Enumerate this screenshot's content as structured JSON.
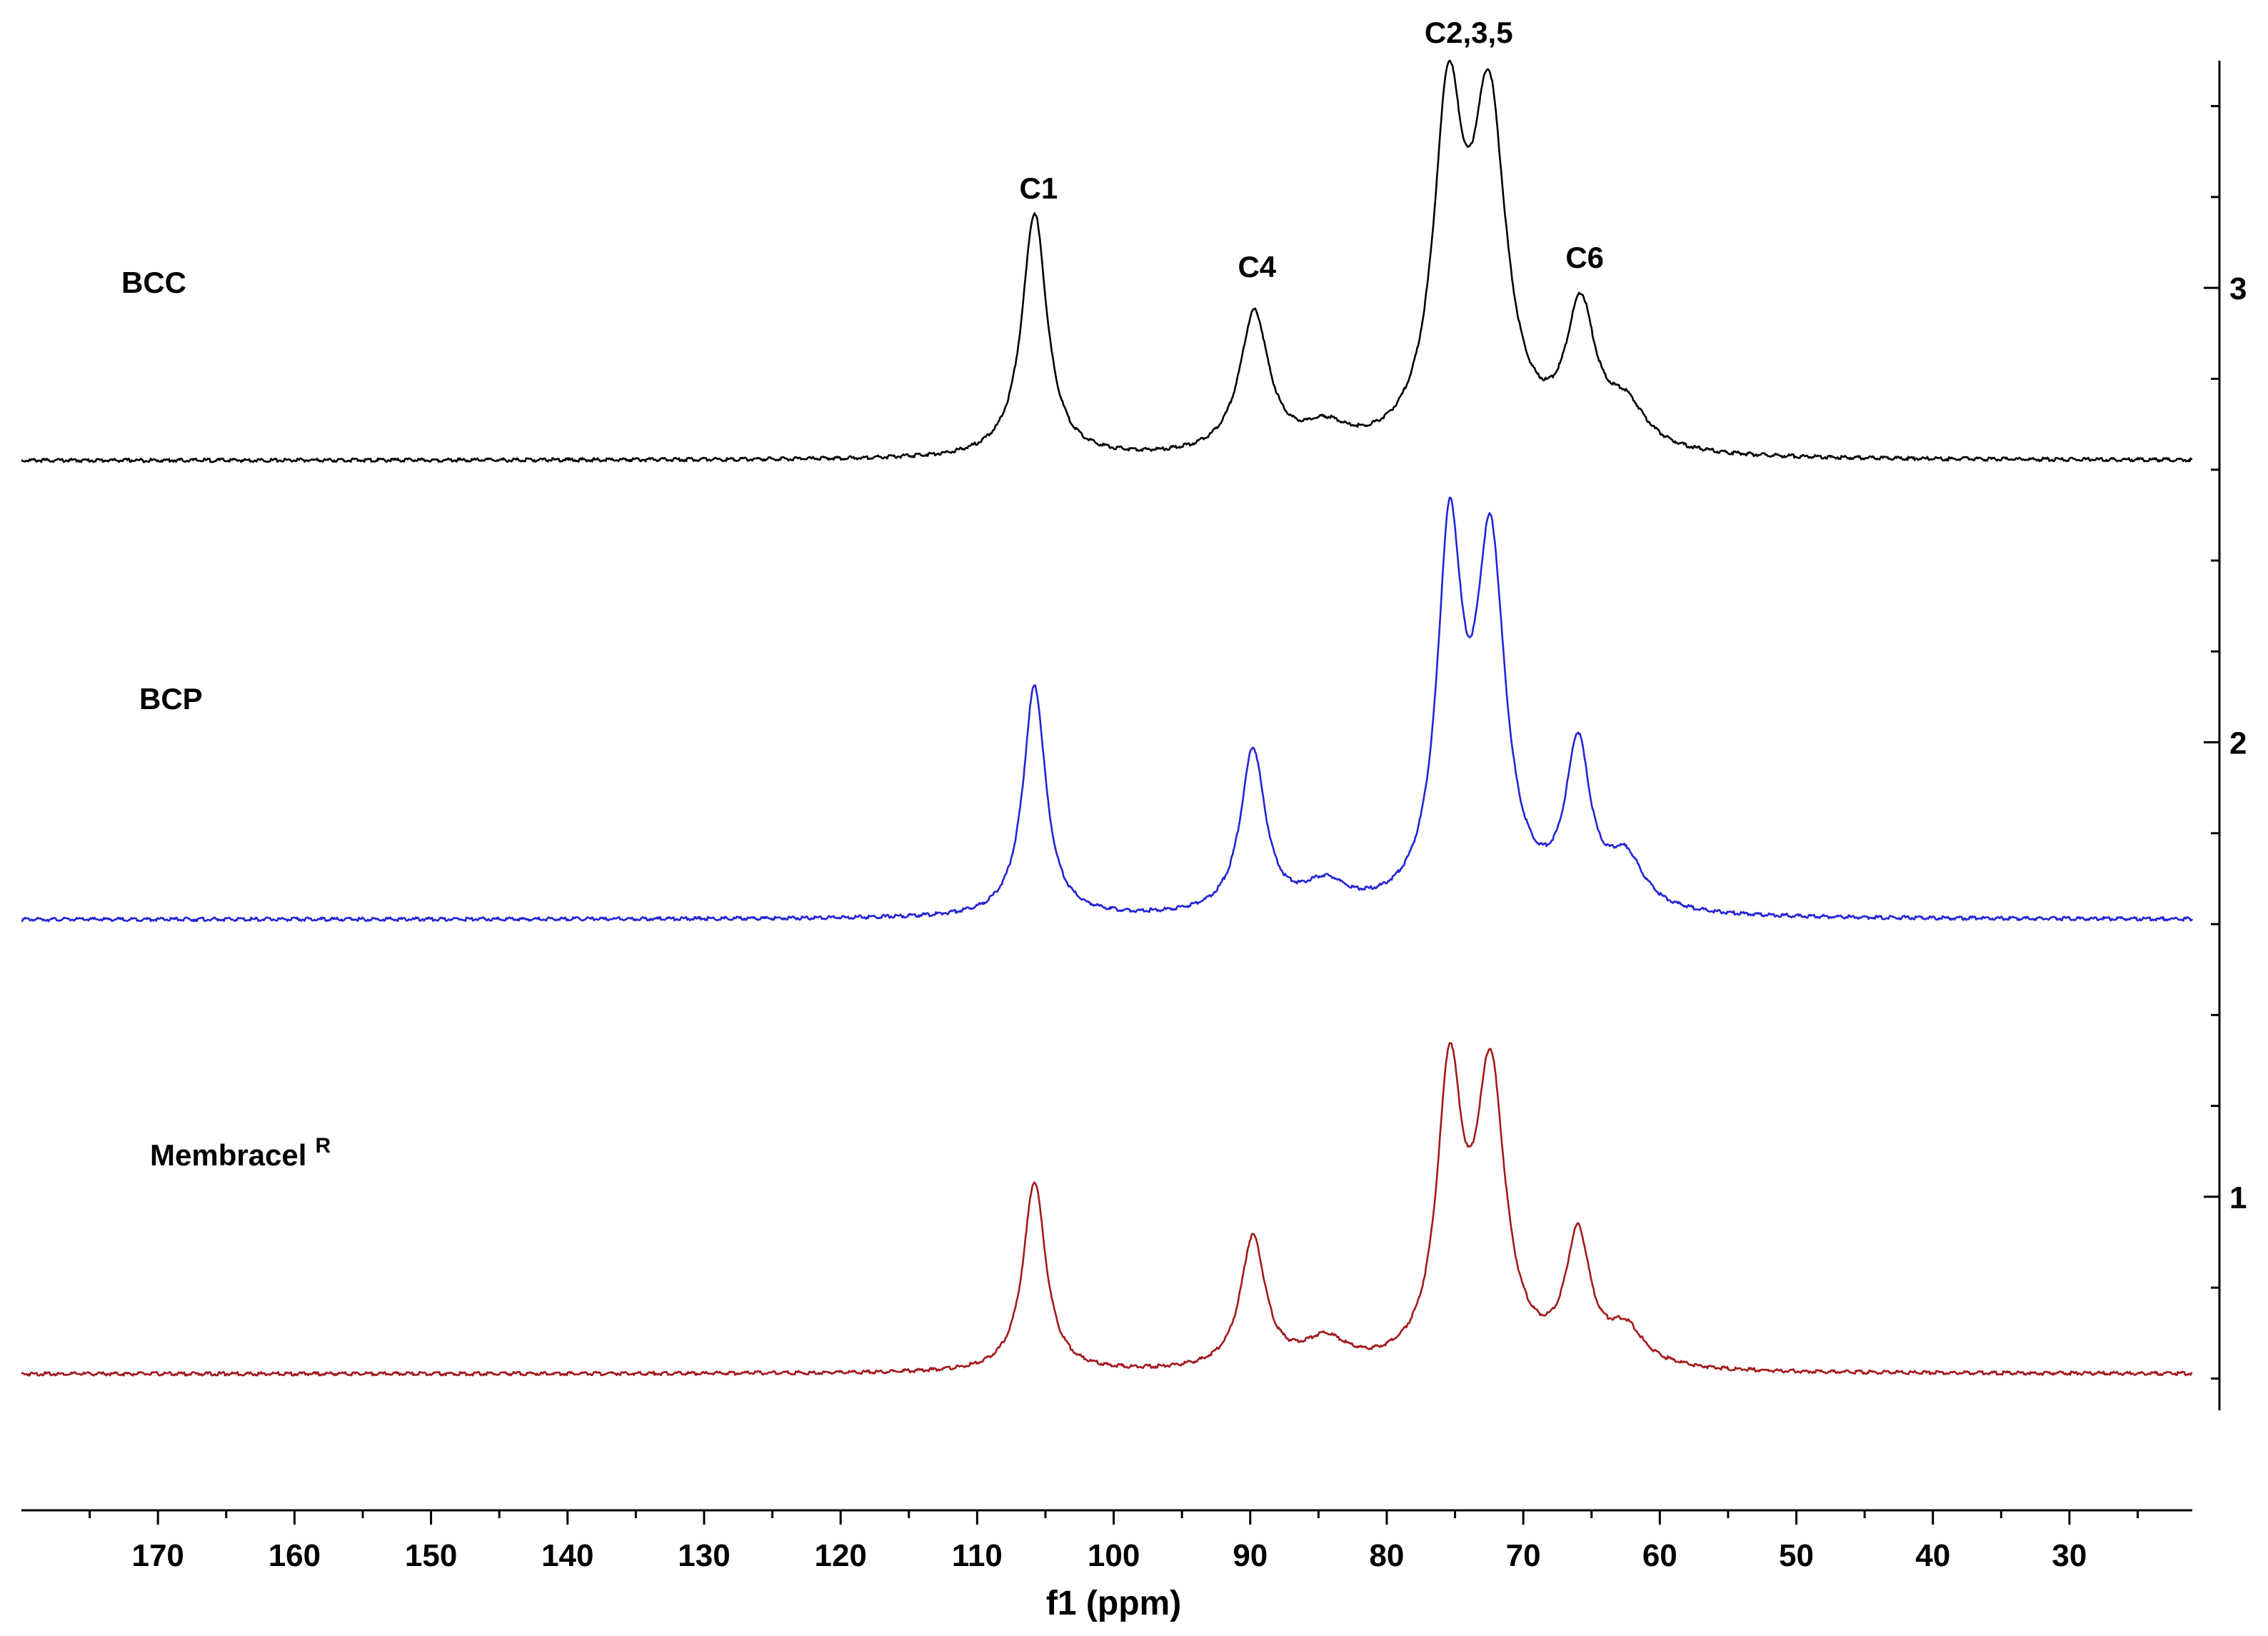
{
  "chart_data": {
    "type": "line",
    "xlabel": "f1 (ppm)",
    "x_reversed": true,
    "xlim": [
      180,
      21
    ],
    "x_ticks": [
      170,
      160,
      150,
      140,
      130,
      120,
      110,
      100,
      90,
      80,
      70,
      60,
      50,
      40,
      30
    ],
    "ylim": [
      0.53,
      3.5
    ],
    "y_ticks": [
      1,
      2,
      3
    ],
    "y_axis_position": "right",
    "grid": false,
    "peak_labels": [
      {
        "text": "C1",
        "x": 105.5
      },
      {
        "text": "C4",
        "x": 89.5
      },
      {
        "text": "C2,3,5",
        "x": 74.0
      },
      {
        "text": "C6",
        "x": 65.5
      }
    ],
    "series": [
      {
        "name": "BCC",
        "color": "#000000",
        "baseline": 2.62,
        "peaks": [
          {
            "center": 105.8,
            "height": 0.54,
            "width": 1.1
          },
          {
            "center": 89.7,
            "height": 0.31,
            "width": 1.3
          },
          {
            "center": 84.5,
            "height": 0.05,
            "width": 2.0
          },
          {
            "center": 75.5,
            "height": 0.72,
            "width": 1.3
          },
          {
            "center": 72.5,
            "height": 0.73,
            "width": 1.5
          },
          {
            "center": 65.8,
            "height": 0.3,
            "width": 1.3
          },
          {
            "center": 62.5,
            "height": 0.09,
            "width": 1.8
          }
        ]
      },
      {
        "name": "BCP",
        "color": "#2424d6",
        "baseline": 1.61,
        "peaks": [
          {
            "center": 105.8,
            "height": 0.51,
            "width": 1.0
          },
          {
            "center": 89.8,
            "height": 0.36,
            "width": 1.1
          },
          {
            "center": 84.5,
            "height": 0.06,
            "width": 2.0
          },
          {
            "center": 75.4,
            "height": 0.79,
            "width": 1.1
          },
          {
            "center": 72.4,
            "height": 0.78,
            "width": 1.3
          },
          {
            "center": 66.0,
            "height": 0.35,
            "width": 1.1
          },
          {
            "center": 62.5,
            "height": 0.11,
            "width": 1.6
          }
        ]
      },
      {
        "name": "Membracel",
        "name_sup": "R",
        "color": "#a3191c",
        "baseline": 0.61,
        "peaks": [
          {
            "center": 105.8,
            "height": 0.42,
            "width": 1.0
          },
          {
            "center": 89.8,
            "height": 0.29,
            "width": 1.1
          },
          {
            "center": 84.5,
            "height": 0.06,
            "width": 2.0
          },
          {
            "center": 75.4,
            "height": 0.62,
            "width": 1.1
          },
          {
            "center": 72.4,
            "height": 0.63,
            "width": 1.3
          },
          {
            "center": 66.0,
            "height": 0.28,
            "width": 1.1
          },
          {
            "center": 62.5,
            "height": 0.08,
            "width": 1.6
          }
        ]
      }
    ]
  }
}
